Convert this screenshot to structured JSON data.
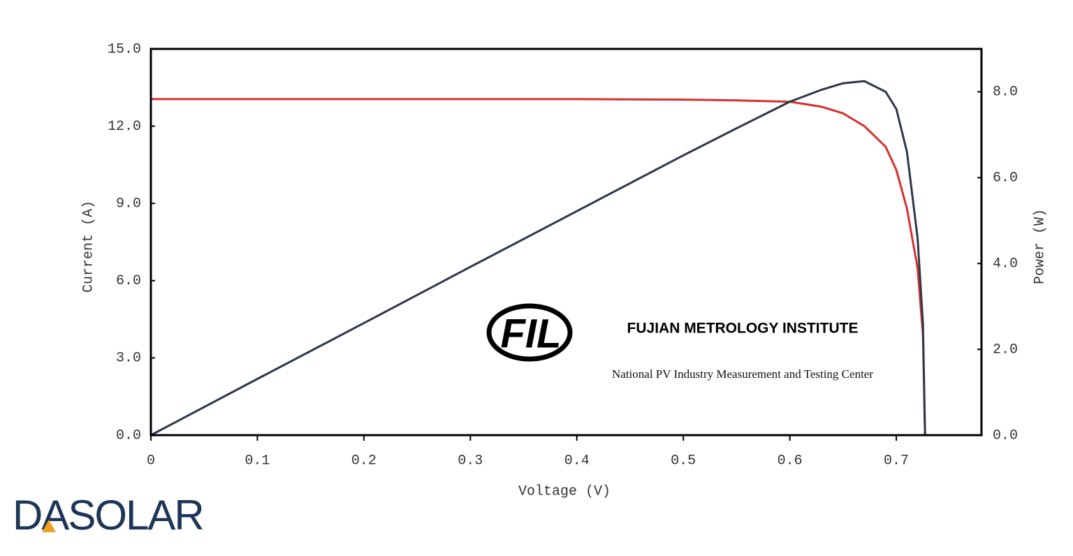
{
  "chart_data": {
    "type": "line",
    "x_label": "Voltage (V)",
    "y_label": "Current (A)",
    "y2_label": "Power (W)",
    "x": [
      0,
      0.1,
      0.2,
      0.3,
      0.4,
      0.5,
      0.55,
      0.6,
      0.63,
      0.65,
      0.67,
      0.69,
      0.7,
      0.71,
      0.72,
      0.725,
      0.727
    ],
    "series": [
      {
        "name": "Current",
        "color": "#d63030",
        "values": [
          13.05,
          13.05,
          13.05,
          13.05,
          13.05,
          13.03,
          13.0,
          12.95,
          12.75,
          12.5,
          12.0,
          11.2,
          10.3,
          8.8,
          6.5,
          3.9,
          0
        ]
      },
      {
        "name": "Power",
        "color": "#2d3748",
        "axis": "y2",
        "values": [
          0,
          1.31,
          2.61,
          3.92,
          5.22,
          6.52,
          7.15,
          7.77,
          8.05,
          8.2,
          8.25,
          8.0,
          7.6,
          6.6,
          4.6,
          2.6,
          0
        ]
      }
    ],
    "xlim": [
      0,
      0.78
    ],
    "xticks": [
      0,
      0.1,
      0.2,
      0.3,
      0.4,
      0.5,
      0.6,
      0.7
    ],
    "ylim": [
      0,
      15
    ],
    "yticks": [
      {
        "value": 0,
        "label": "0.0"
      },
      {
        "value": 3,
        "label": "3.0"
      },
      {
        "value": 6,
        "label": "6.0"
      },
      {
        "value": 9,
        "label": "9.0"
      },
      {
        "value": 12,
        "label": "12.0"
      },
      {
        "value": 15,
        "label": "15.0"
      }
    ],
    "y2lim": [
      0,
      9
    ],
    "y2ticks": [
      {
        "value": 0,
        "label": "0.0"
      },
      {
        "value": 2,
        "label": "2.0"
      },
      {
        "value": 4,
        "label": "4.0"
      },
      {
        "value": 6,
        "label": "6.0"
      },
      {
        "value": 8,
        "label": "8.0"
      }
    ],
    "grid": false,
    "annotations": [
      "FIL",
      "FUJIAN METROLOGY INSTITUTE",
      "National PV Industry Measurement and Testing Center"
    ],
    "logo": "DASOLAR"
  }
}
